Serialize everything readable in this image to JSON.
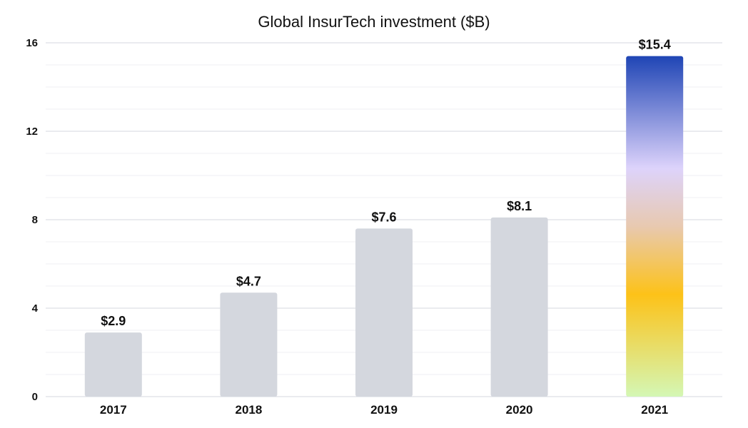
{
  "chart_data": {
    "type": "bar",
    "title": "Global InsurTech investment ($B)",
    "xlabel": "",
    "ylabel": "",
    "categories": [
      "2017",
      "2018",
      "2019",
      "2020",
      "2021"
    ],
    "values": [
      2.9,
      4.7,
      7.6,
      8.1,
      15.4
    ],
    "data_labels": [
      "$2.9",
      "$4.7",
      "$7.6",
      "$8.1",
      "$15.4"
    ],
    "ylim": [
      0,
      16
    ],
    "yticks": [
      0,
      4,
      8,
      12,
      16
    ],
    "grid": true,
    "colors": {
      "bar": "#d4d7de",
      "highlight_gradient": [
        "#1f45b5",
        "#ddd3fb",
        "#e8c9b0",
        "#fdc218",
        "#d4f7b5"
      ],
      "major_grid": "#d6d7df",
      "minor_grid": "#efeff3"
    }
  }
}
